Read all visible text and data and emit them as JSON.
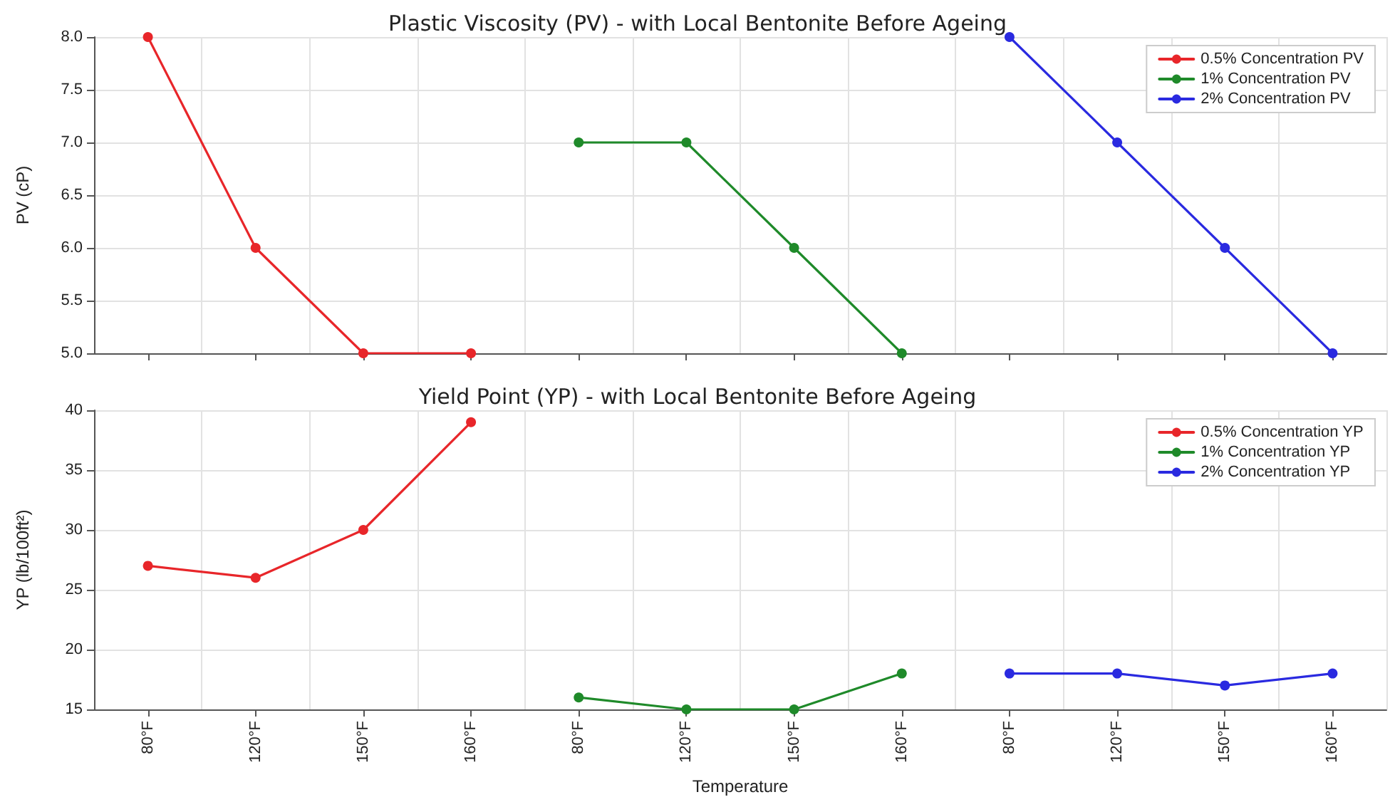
{
  "chart_data": [
    {
      "type": "line",
      "title": "Plastic Viscosity (PV) - with Local Bentonite Before Ageing",
      "ylabel": "PV (cP)",
      "categories": [
        null,
        null,
        null,
        null,
        null,
        null,
        null,
        null,
        null,
        null,
        null,
        null
      ],
      "series": [
        {
          "name": "0.5% Concentration PV",
          "color": "#e8262a",
          "values": [
            8.0,
            6.0,
            5.0,
            5.0,
            null,
            null,
            null,
            null,
            null,
            null,
            null,
            null
          ]
        },
        {
          "name": "1% Concentration PV",
          "color": "#1f8a2a",
          "values": [
            null,
            null,
            null,
            null,
            7.0,
            7.0,
            6.0,
            5.0,
            null,
            null,
            null,
            null
          ]
        },
        {
          "name": "2% Concentration PV",
          "color": "#2a2ae0",
          "values": [
            null,
            null,
            null,
            null,
            null,
            null,
            null,
            null,
            8.0,
            7.0,
            6.0,
            5.0
          ]
        }
      ],
      "ylim": [
        5.0,
        8.0
      ],
      "yticks": [
        {
          "value": 5,
          "label": "5.0"
        },
        {
          "value": 5.5,
          "label": "5.5"
        },
        {
          "value": 6,
          "label": "6.0"
        },
        {
          "value": 6.5,
          "label": "6.5"
        },
        {
          "value": 7,
          "label": "7.0"
        },
        {
          "value": 7.5,
          "label": "7.5"
        },
        {
          "value": 8,
          "label": "8.0"
        }
      ],
      "grid": true,
      "legend": "top right",
      "marker": "circle",
      "line_style": "solid",
      "tick_labels": "y"
    },
    {
      "type": "line",
      "title": "Yield Point (YP) - with Local Bentonite Before Ageing",
      "ylabel": "YP (lb/100ft²)",
      "xlabel": "Temperature",
      "categories": [
        "80°F",
        "120°F",
        "150°F",
        "160°F",
        "80°F",
        "120°F",
        "150°F",
        "160°F",
        "80°F",
        "120°F",
        "150°F",
        "160°F"
      ],
      "series": [
        {
          "name": "0.5% Concentration YP",
          "color": "#e8262a",
          "values": [
            27,
            26,
            30,
            39,
            null,
            null,
            null,
            null,
            null,
            null,
            null,
            null
          ]
        },
        {
          "name": "1% Concentration YP",
          "color": "#1f8a2a",
          "values": [
            null,
            null,
            null,
            null,
            16,
            15,
            15,
            18,
            null,
            null,
            null,
            null
          ]
        },
        {
          "name": "2% Concentration YP",
          "color": "#2a2ae0",
          "values": [
            null,
            null,
            null,
            null,
            null,
            null,
            null,
            null,
            18,
            18,
            17,
            18
          ]
        }
      ],
      "ylim": [
        15,
        40
      ],
      "yticks": [
        15,
        20,
        25,
        30,
        35,
        40
      ],
      "grid": true,
      "legend": "top right",
      "marker": "circle",
      "line_style": "solid"
    }
  ]
}
